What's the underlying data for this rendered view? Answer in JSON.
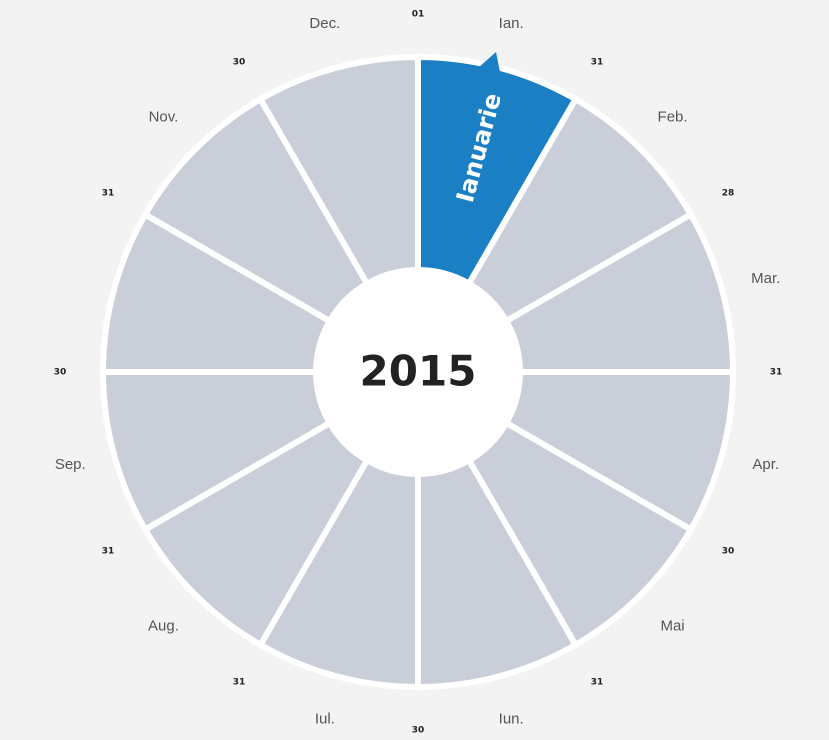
{
  "calendar": {
    "year": "2015",
    "selected_month": "Ianuarie",
    "month_labels": [
      "Ian.",
      "Feb.",
      "Mar.",
      "Apr.",
      "Mai",
      "Iun.",
      "Iul.",
      "Aug.",
      "Sep.",
      null,
      "Nov.",
      "Dec."
    ],
    "day_marks": [
      "01",
      "31",
      "28",
      "31",
      "30",
      "31",
      "30",
      "31",
      "31",
      "30",
      "31",
      "30"
    ]
  }
}
